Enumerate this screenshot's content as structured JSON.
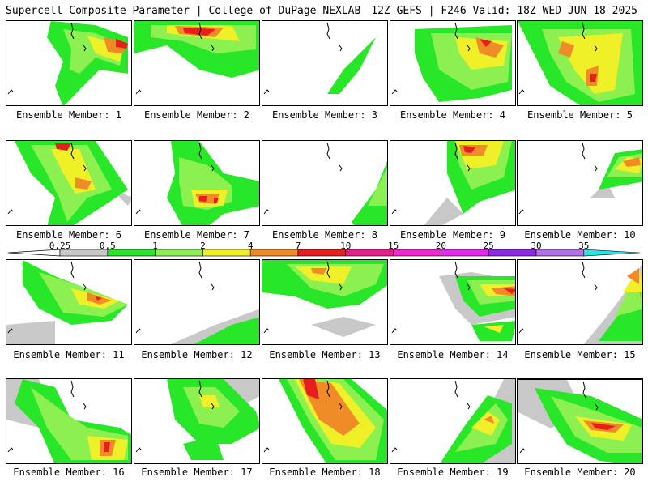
{
  "header": {
    "left_title": "Supercell Composite Parameter | College of DuPage NEXLAB",
    "right_title": "12Z GEFS | F246 Valid: 18Z WED JUN 18 2025"
  },
  "members": [
    {
      "label": "Ensemble Member: 1"
    },
    {
      "label": "Ensemble Member: 2"
    },
    {
      "label": "Ensemble Member: 3"
    },
    {
      "label": "Ensemble Member: 4"
    },
    {
      "label": "Ensemble Member: 5"
    },
    {
      "label": "Ensemble Member: 6"
    },
    {
      "label": "Ensemble Member: 7"
    },
    {
      "label": "Ensemble Member: 8"
    },
    {
      "label": "Ensemble Member: 9"
    },
    {
      "label": "Ensemble Member: 10"
    },
    {
      "label": "Ensemble Member: 11"
    },
    {
      "label": "Ensemble Member: 12"
    },
    {
      "label": "Ensemble Member: 13"
    },
    {
      "label": "Ensemble Member: 14"
    },
    {
      "label": "Ensemble Member: 15"
    },
    {
      "label": "Ensemble Member: 16"
    },
    {
      "label": "Ensemble Member: 17"
    },
    {
      "label": "Ensemble Member: 18"
    },
    {
      "label": "Ensemble Member: 19"
    },
    {
      "label": "Ensemble Member: 20"
    }
  ],
  "colorbar": {
    "ticks": [
      "0.25",
      "0.5",
      "1",
      "2",
      "4",
      "7",
      "10",
      "15",
      "20",
      "25",
      "30",
      "35"
    ],
    "colors": [
      "#c8c8c8",
      "#28e628",
      "#8cf050",
      "#f0f028",
      "#f08c28",
      "#e61e1e",
      "#e61e8c",
      "#f028d2",
      "#e628f0",
      "#8c28e6",
      "#b46ee6",
      "#28e6e6"
    ]
  }
}
